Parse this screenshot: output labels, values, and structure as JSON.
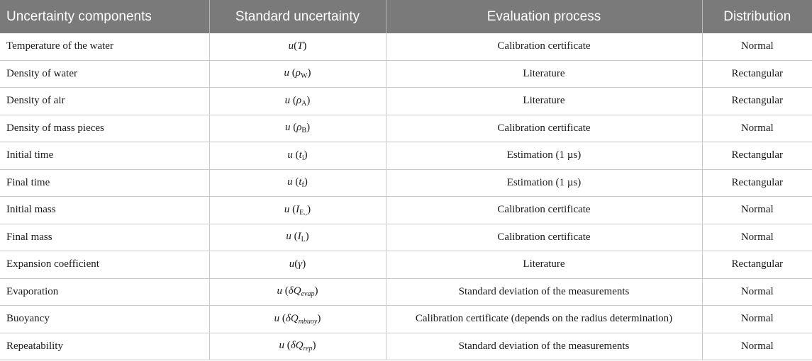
{
  "headers": [
    "Uncertainty components",
    "Standard uncertainty",
    "Evaluation process",
    "Distribution"
  ],
  "rows": [
    {
      "component": "Temperature of the water",
      "u": "u",
      "open": "(",
      "var": "T",
      "sub": "",
      "sub_italic": false,
      "close": ")",
      "process": "Calibration certificate",
      "distribution": "Normal"
    },
    {
      "component": "Density of water",
      "u": "u",
      "open": " (",
      "var": "ρ",
      "sub": "W",
      "sub_italic": false,
      "close": ")",
      "process": "Literature",
      "distribution": "Rectangular"
    },
    {
      "component": "Density of air",
      "u": "u",
      "open": " (",
      "var": "ρ",
      "sub": "A",
      "sub_italic": false,
      "close": ")",
      "process": "Literature",
      "distribution": "Rectangular"
    },
    {
      "component": "Density of mass pieces",
      "u": "u",
      "open": " (",
      "var": "ρ",
      "sub": "B",
      "sub_italic": false,
      "close": ")",
      "process": "Calibration certificate",
      "distribution": "Normal"
    },
    {
      "component": "Initial time",
      "u": "u",
      "open": " (",
      "var": "t",
      "sub": "i",
      "sub_italic": false,
      "close": ")",
      "process": "Estimation (1 µs)",
      "distribution": "Rectangular"
    },
    {
      "component": "Final time",
      "u": "u",
      "open": " (",
      "var": "t",
      "sub": "f",
      "sub_italic": false,
      "close": ")",
      "process": "Estimation (1 µs)",
      "distribution": "Rectangular"
    },
    {
      "component": "Initial mass",
      "u": "u",
      "open": " (",
      "var": "I",
      "sub": "E.,",
      "sub_italic": false,
      "close": ")",
      "process": "Calibration certificate",
      "distribution": "Normal"
    },
    {
      "component": "Final mass",
      "u": "u",
      "open": " (",
      "var": "I",
      "sub": "L",
      "sub_italic": false,
      "close": ")",
      "process": "Calibration certificate",
      "distribution": "Normal"
    },
    {
      "component": "Expansion coefficient",
      "u": "u",
      "open": "(",
      "var": "γ",
      "sub": "",
      "sub_italic": false,
      "close": ")",
      "process": "Literature",
      "distribution": "Rectangular"
    },
    {
      "component": "Evaporation",
      "u": "u",
      "open": " (",
      "var": "δQ",
      "sub": "evap",
      "sub_italic": true,
      "close": ")",
      "process": "Standard deviation of the measurements",
      "distribution": "Normal"
    },
    {
      "component": "Buoyancy",
      "u": "u",
      "open": " (",
      "var": "δQ",
      "sub": "mbuoy",
      "sub_italic": true,
      "close": ")",
      "process": "Calibration certificate (depends on the radius determination)",
      "distribution": "Normal"
    },
    {
      "component": "Repeatability",
      "u": "u",
      "open": " (",
      "var": "δQ",
      "sub": "rep",
      "sub_italic": true,
      "close": ")",
      "process": "Standard deviation of the measurements",
      "distribution": "Normal"
    }
  ]
}
